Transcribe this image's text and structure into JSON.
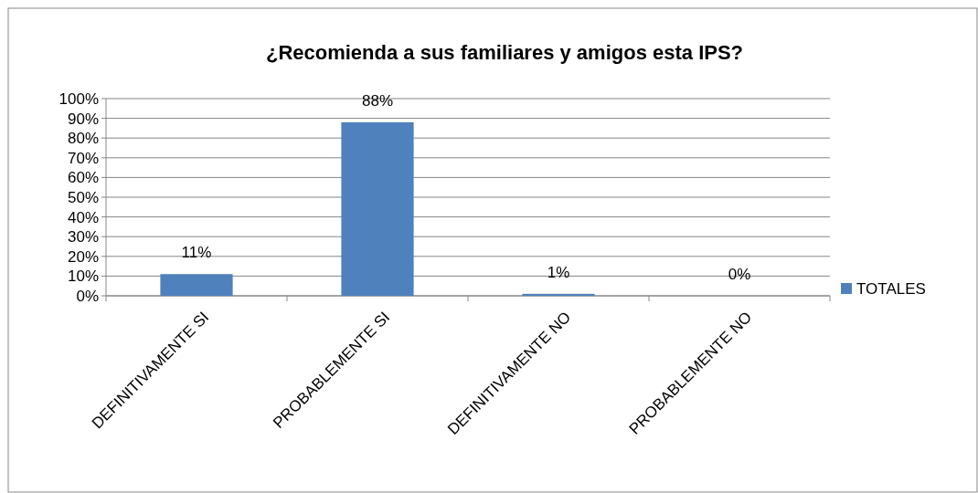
{
  "chart_data": {
    "type": "bar",
    "title": "¿Recomienda a sus familiares y amigos esta IPS?",
    "categories": [
      "DEFINITIVAMENTE SI",
      "PROBABLEMENTE SI",
      "DEFINITIVAMENTE NO",
      "PROBABLEMENTE NO"
    ],
    "series": [
      {
        "name": "TOTALES",
        "color": "#4f81bd",
        "values": [
          11,
          88,
          1,
          0
        ],
        "value_labels": [
          "11%",
          "88%",
          "1%",
          "0%"
        ]
      }
    ],
    "ylim": [
      0,
      100
    ],
    "yticks": [
      {
        "value": 0,
        "label": "0%"
      },
      {
        "value": 10,
        "label": "10%"
      },
      {
        "value": 20,
        "label": "20%"
      },
      {
        "value": 30,
        "label": "30%"
      },
      {
        "value": 40,
        "label": "40%"
      },
      {
        "value": 50,
        "label": "50%"
      },
      {
        "value": 60,
        "label": "60%"
      },
      {
        "value": 70,
        "label": "70%"
      },
      {
        "value": 80,
        "label": "80%"
      },
      {
        "value": 90,
        "label": "90%"
      },
      {
        "value": 100,
        "label": "100%"
      }
    ],
    "grid": "y",
    "legend": "right"
  }
}
